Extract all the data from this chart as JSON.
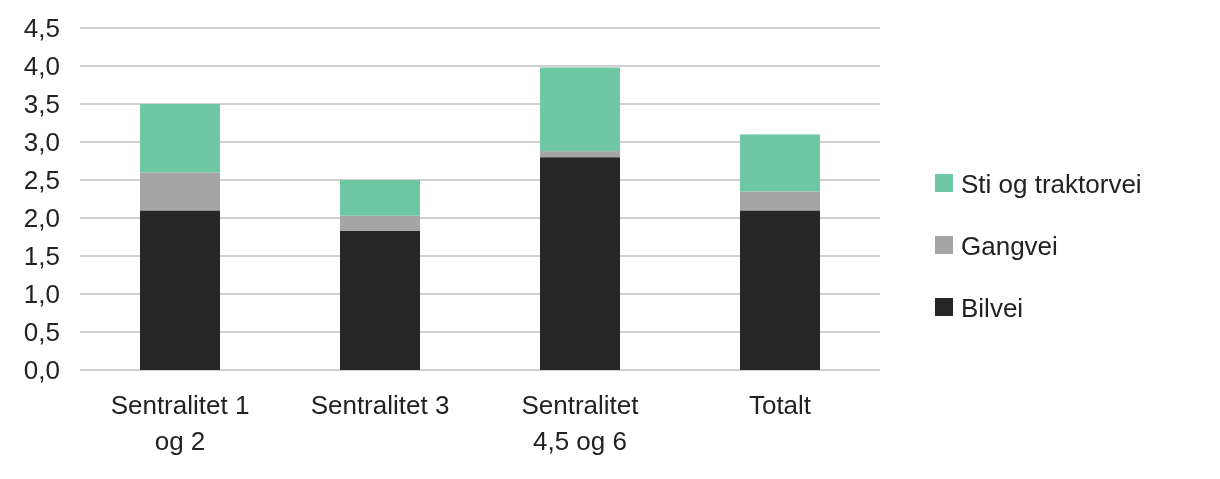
{
  "chart_data": {
    "type": "bar",
    "stacked": true,
    "categories": [
      "Sentralitet 1 og 2",
      "Sentralitet 3",
      "Sentralitet 4,5 og 6",
      "Totalt"
    ],
    "series": [
      {
        "name": "Bilvei",
        "color": "#262626",
        "values": [
          2.1,
          1.83,
          2.8,
          2.1
        ]
      },
      {
        "name": "Gangvei",
        "color": "#a5a5a5",
        "values": [
          0.5,
          0.2,
          0.08,
          0.25
        ]
      },
      {
        "name": "Sti og traktorvei",
        "color": "#6dc8a3",
        "values": [
          0.9,
          0.47,
          1.1,
          0.75
        ]
      }
    ],
    "ylim": [
      0,
      4.5
    ],
    "yticks": [
      {
        "value": 0,
        "label": "0,0"
      },
      {
        "value": 0.5,
        "label": "0,5"
      },
      {
        "value": 1,
        "label": "1,0"
      },
      {
        "value": 1.5,
        "label": "1,5"
      },
      {
        "value": 2,
        "label": "2,0"
      },
      {
        "value": 2.5,
        "label": "2,5"
      },
      {
        "value": 3,
        "label": "3,0"
      },
      {
        "value": 3.5,
        "label": "3,5"
      },
      {
        "value": 4,
        "label": "4,0"
      },
      {
        "value": 4.5,
        "label": "4,5"
      }
    ],
    "grid": "y",
    "legend": "right"
  }
}
